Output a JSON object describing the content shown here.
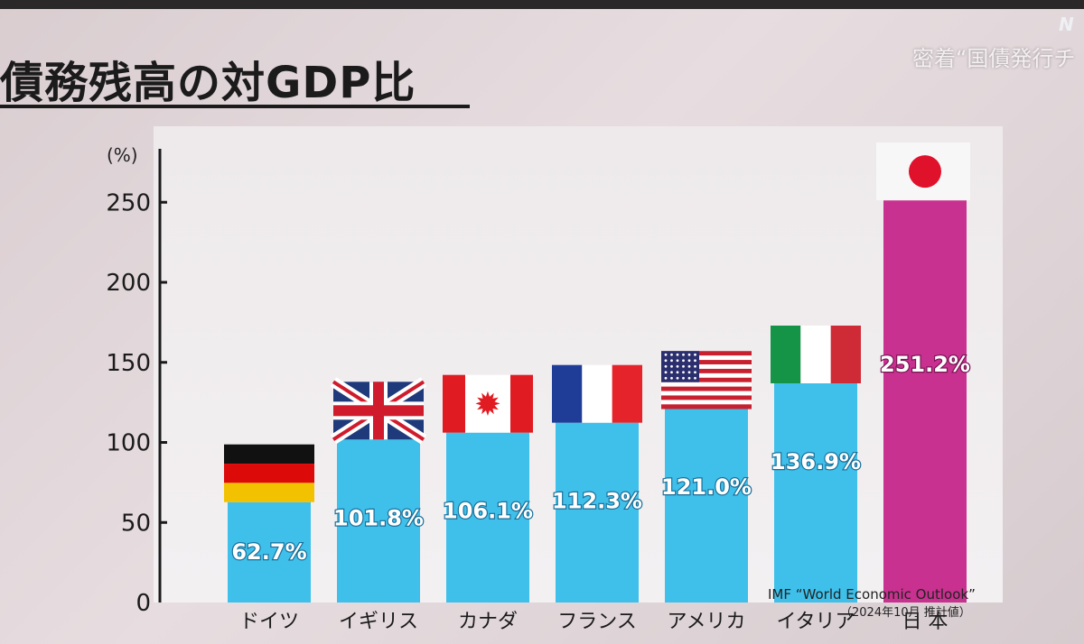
{
  "header": {
    "title": "債務残高の対GDP比",
    "corner_text": "密着“国債発行チ",
    "corner_logo": "N"
  },
  "source": {
    "line1": "IMF “World Economic Outlook”",
    "line2": "（2024年10月 推計値）"
  },
  "chart_data": {
    "type": "bar",
    "title": "債務残高の対GDP比",
    "ylabel": "(%)",
    "xlabel": "",
    "ylim": [
      0,
      270
    ],
    "yticks": [
      0,
      50,
      100,
      150,
      200,
      250
    ],
    "categories": [
      "ドイツ",
      "イギリス",
      "カナダ",
      "フランス",
      "アメリカ",
      "イタリア",
      "日 本"
    ],
    "values": [
      62.7,
      101.8,
      106.1,
      112.3,
      121.0,
      136.9,
      251.2
    ],
    "value_labels": [
      "62.7%",
      "101.8%",
      "106.1%",
      "112.3%",
      "121.0%",
      "136.9%",
      "251.2%"
    ],
    "flags": [
      "germany-flag",
      "uk-flag",
      "canada-flag",
      "france-flag",
      "usa-flag",
      "italy-flag",
      "japan-flag"
    ],
    "colors": {
      "bar": "#3ec0ea",
      "highlight": "#c8318f",
      "label_fill": "#ffffff",
      "label_stroke": "#1a6f99",
      "axis": "#1b1b1b"
    }
  }
}
